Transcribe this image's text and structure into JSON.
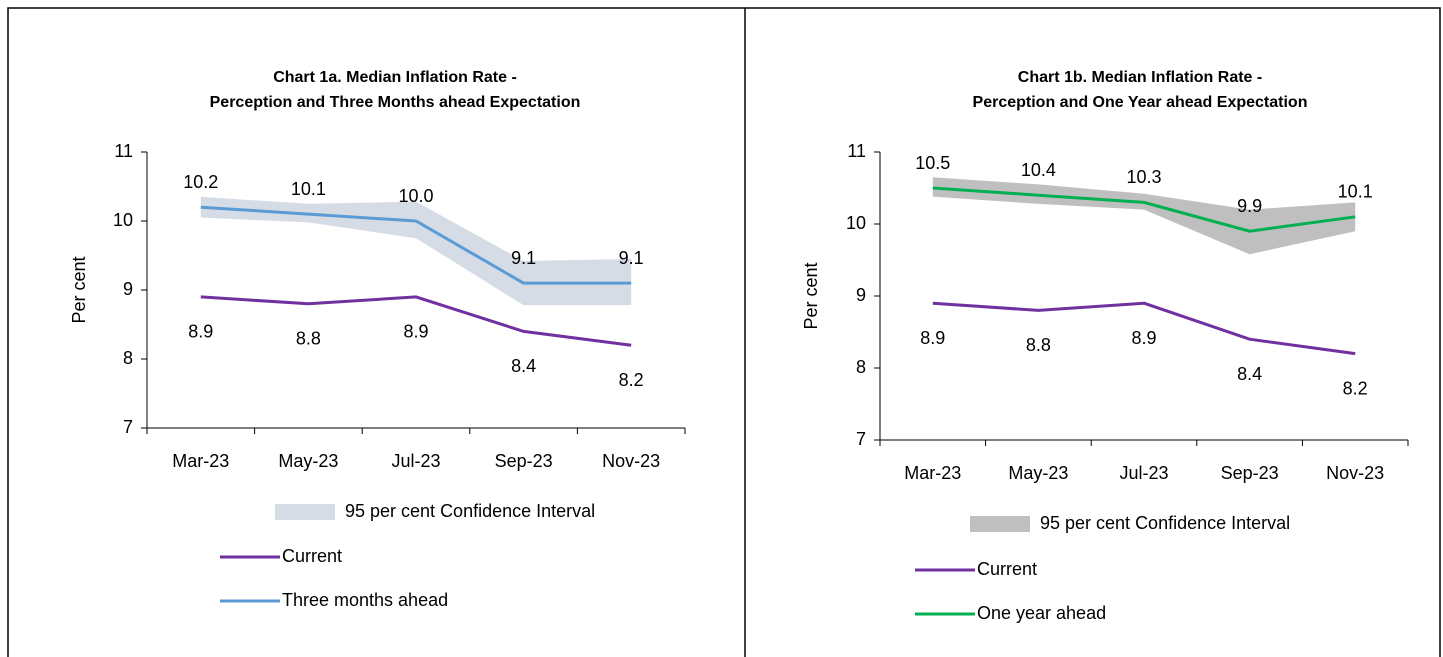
{
  "chart_data": [
    {
      "type": "line",
      "title": [
        "Chart 1a. Median Inflation Rate -",
        "Perception and Three Months ahead Expectation"
      ],
      "y_label": "Per cent",
      "categories": [
        "Mar-23",
        "May-23",
        "Jul-23",
        "Sep-23",
        "Nov-23"
      ],
      "ylim": [
        7,
        11
      ],
      "yticks": [
        7,
        8,
        9,
        10,
        11
      ],
      "band": {
        "name": "95 per cent Confidence Interval",
        "color": "#d6dce5",
        "lower": [
          10.05,
          9.98,
          9.75,
          8.78,
          8.78
        ],
        "upper": [
          10.35,
          10.25,
          10.28,
          9.42,
          9.45
        ]
      },
      "series": [
        {
          "name": "Current",
          "color": "#7030a0",
          "label_position": "below",
          "values": [
            8.9,
            8.8,
            8.9,
            8.4,
            8.2
          ]
        },
        {
          "name": "Three months ahead",
          "color": "#5b9bd5",
          "label_position": "above",
          "values": [
            10.2,
            10.1,
            10,
            9.1,
            9.1
          ],
          "value_labels": [
            "10.2",
            "10.1",
            "10.0",
            "9.1",
            "9.1"
          ]
        }
      ]
    },
    {
      "type": "line",
      "title": [
        "Chart 1b. Median Inflation Rate -",
        "Perception and One Year ahead Expectation"
      ],
      "y_label": "Per cent",
      "categories": [
        "Mar-23",
        "May-23",
        "Jul-23",
        "Sep-23",
        "Nov-23"
      ],
      "ylim": [
        7,
        11
      ],
      "yticks": [
        7,
        8,
        9,
        10,
        11
      ],
      "band": {
        "name": "95 per cent Confidence Interval",
        "color": "#bfbfbf",
        "lower": [
          10.38,
          10.28,
          10.2,
          9.58,
          9.9
        ],
        "upper": [
          10.65,
          10.55,
          10.42,
          10.2,
          10.3
        ]
      },
      "series": [
        {
          "name": "Current",
          "color": "#7030a0",
          "label_position": "below",
          "values": [
            8.9,
            8.8,
            8.9,
            8.4,
            8.2
          ]
        },
        {
          "name": "One year ahead",
          "color": "#00b050",
          "label_position": "above",
          "values": [
            10.5,
            10.4,
            10.3,
            9.9,
            10.1
          ]
        }
      ]
    }
  ]
}
